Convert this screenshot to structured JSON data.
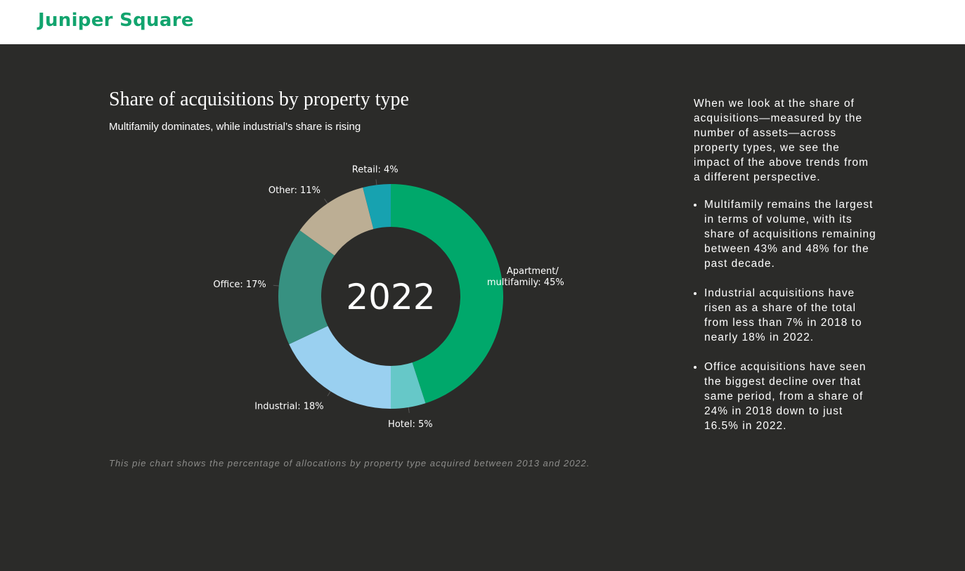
{
  "header": {
    "logo": "Juniper Square",
    "brand_color": "#12a46e"
  },
  "main": {
    "title": "Share of acquisitions by property type",
    "subtitle": "Multifamily dominates, while industrial’s share is rising",
    "caption": "This pie chart shows the percentage of allocations by property type acquired between 2013 and 2022."
  },
  "chart_data": {
    "type": "pie",
    "donut": true,
    "center_label": "2022",
    "categories": [
      "Apartment/ multifamily",
      "Hotel",
      "Industrial",
      "Office",
      "Other",
      "Retail"
    ],
    "values": [
      45,
      5,
      18,
      17,
      11,
      4
    ],
    "labels": [
      "Apartment/\nmultifamily: 45%",
      "Hotel: 5%",
      "Industrial: 18%",
      "Office: 17%",
      "Other: 11%",
      "Retail: 4%"
    ],
    "colors": [
      "#00a86b",
      "#66c8c8",
      "#9ad0f0",
      "#379181",
      "#bcae94",
      "#17a2b0"
    ],
    "unit": "%"
  },
  "sidebar": {
    "intro": "When we look at the share of acquisitions—measured by the number of assets—across property types, we see the impact of the above trends from a different perspective.",
    "bullets": [
      "Multifamily remains the largest in terms of volume, with its share of acquisitions remaining between 43% and 48% for the past decade.",
      "Industrial acquisitions have risen as a share of the total from less than 7% in 2018 to nearly 18% in 2022.",
      "Office acquisitions have seen the biggest decline over that same period, from a share of 24% in 2018 down to just 16.5% in 2022."
    ]
  }
}
